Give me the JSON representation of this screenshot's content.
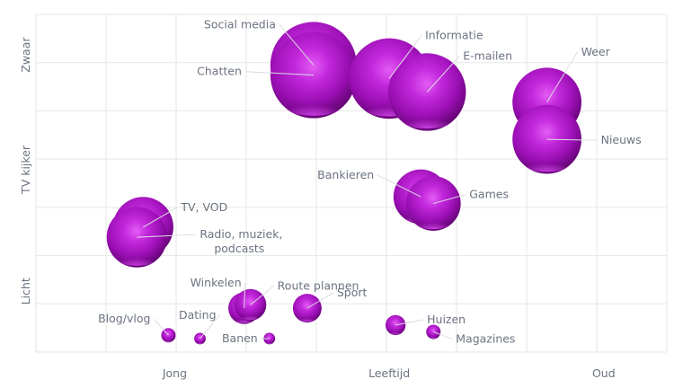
{
  "chart_data": {
    "type": "scatter",
    "subtype": "bubble",
    "title": "",
    "xlabel": "Leeftijd",
    "ylabel": "TV kijker",
    "xlim": [
      0,
      100
    ],
    "ylim": [
      0,
      100
    ],
    "x_ticks": [
      {
        "value": 22,
        "label": "Jong"
      },
      {
        "value": 56,
        "label": "Leeftijd"
      },
      {
        "value": 90,
        "label": "Oud"
      }
    ],
    "y_ticks": [
      {
        "value": 18,
        "label": "Licht"
      },
      {
        "value": 54,
        "label": "TV kijker"
      },
      {
        "value": 88,
        "label": "Zwaar"
      }
    ],
    "grid": true,
    "bubble_color": "#a012b8",
    "label_color": "#6b7380",
    "grid_color": "#e6e6e6",
    "points": [
      {
        "label": "Social media",
        "x": 44,
        "y": 85,
        "size": 30
      },
      {
        "label": "Chatten",
        "x": 44,
        "y": 82,
        "size": 30
      },
      {
        "label": "Informatie",
        "x": 56,
        "y": 81,
        "size": 28
      },
      {
        "label": "E-mailen",
        "x": 62,
        "y": 77,
        "size": 27
      },
      {
        "label": "Weer",
        "x": 81,
        "y": 74,
        "size": 24
      },
      {
        "label": "Nieuws",
        "x": 81,
        "y": 63,
        "size": 24
      },
      {
        "label": "Bankieren",
        "x": 61,
        "y": 46,
        "size": 19
      },
      {
        "label": "Games",
        "x": 63,
        "y": 44,
        "size": 19
      },
      {
        "label": "TV, VOD",
        "x": 17,
        "y": 37,
        "size": 21
      },
      {
        "label": "Radio, muziek, podcasts",
        "x": 16,
        "y": 34,
        "size": 21
      },
      {
        "label": "Winkelen",
        "x": 33,
        "y": 13,
        "size": 11
      },
      {
        "label": "Route plannen",
        "x": 34,
        "y": 14,
        "size": 11
      },
      {
        "label": "Sport",
        "x": 43,
        "y": 13,
        "size": 10
      },
      {
        "label": "Blog/vlog",
        "x": 21,
        "y": 5,
        "size": 5
      },
      {
        "label": "Dating",
        "x": 26,
        "y": 4,
        "size": 4
      },
      {
        "label": "Banen",
        "x": 37,
        "y": 4,
        "size": 4
      },
      {
        "label": "Huizen",
        "x": 57,
        "y": 8,
        "size": 7
      },
      {
        "label": "Magazines",
        "x": 63,
        "y": 6,
        "size": 5
      }
    ]
  }
}
